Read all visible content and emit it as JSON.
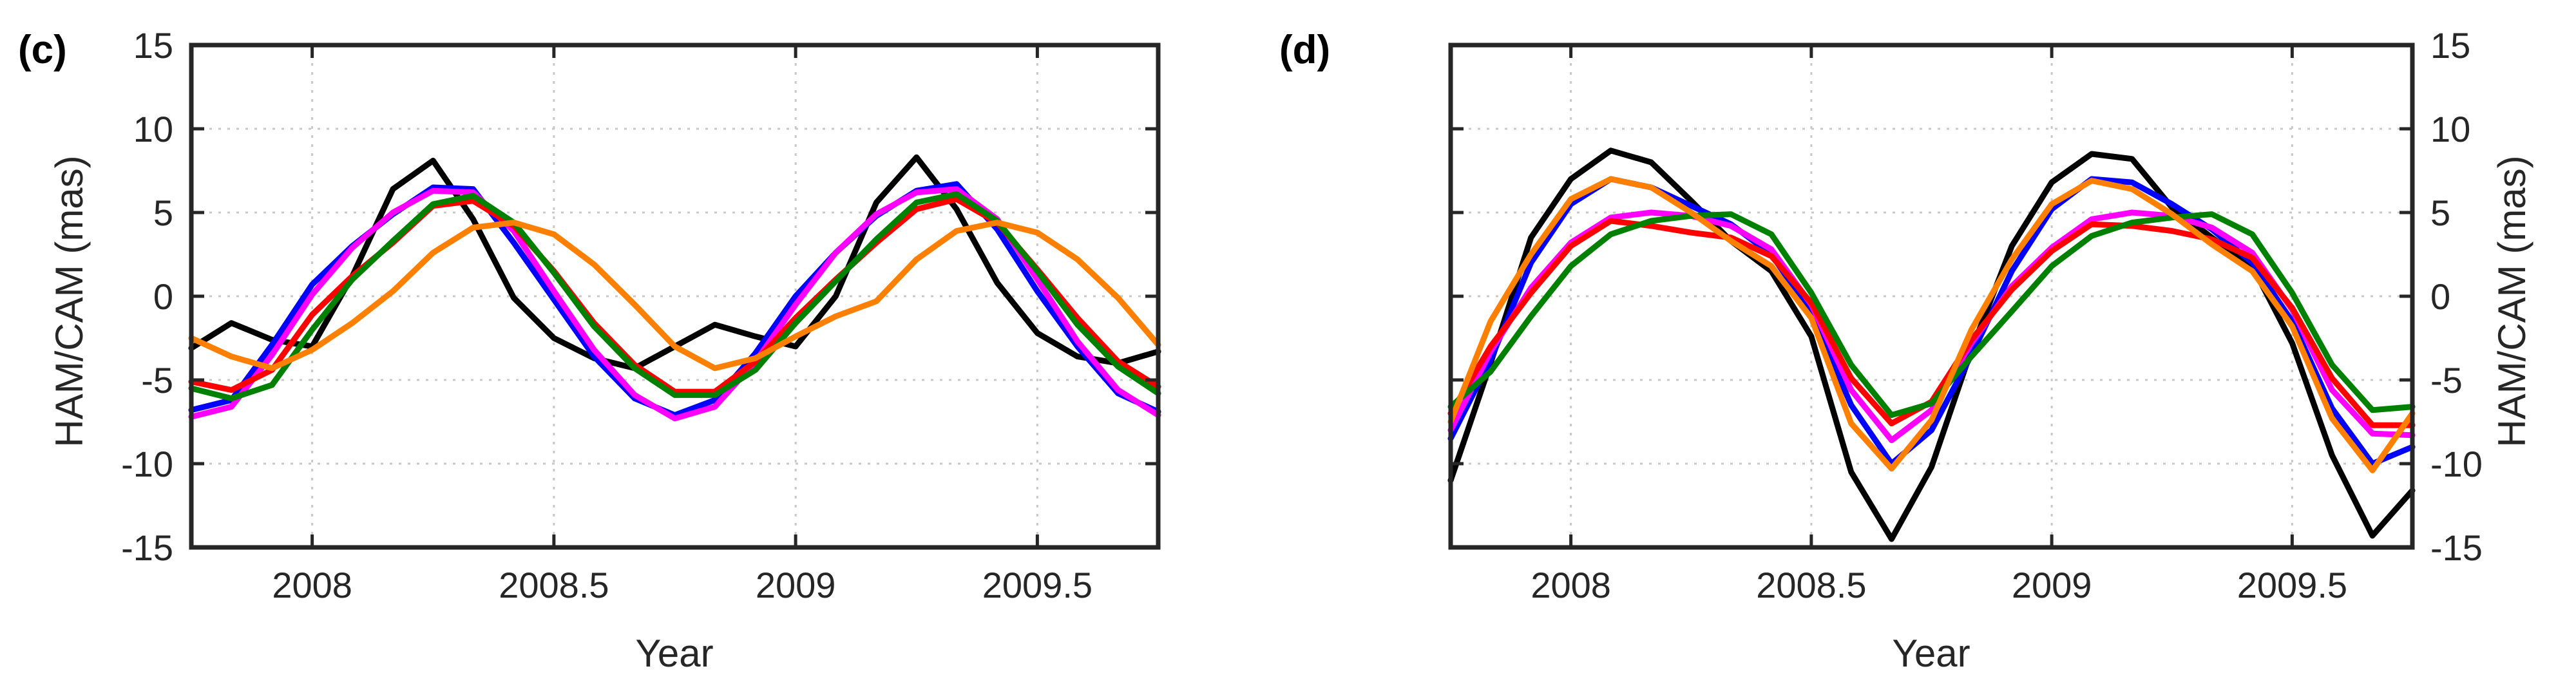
{
  "chart_data": [
    {
      "type": "line",
      "panel_label": "(c)",
      "xlabel": "Year",
      "ylabel": "HAM/CAM (mas)",
      "xlim": [
        2007.75,
        2009.75
      ],
      "ylim": [
        -15,
        15
      ],
      "x_ticks": [
        2008,
        2008.5,
        2009,
        2009.5
      ],
      "x_tick_labels": [
        "2008",
        "2008.5",
        "2009",
        "2009.5"
      ],
      "y_ticks": [
        -15,
        -10,
        -5,
        0,
        5,
        10,
        15
      ],
      "y_tick_labels": [
        "-15",
        "-10",
        "-5",
        "0",
        "5",
        "10",
        "15"
      ],
      "y_axis_side": "left",
      "grid": true,
      "x": [
        2007.75,
        2007.833,
        2007.917,
        2008.0,
        2008.083,
        2008.167,
        2008.25,
        2008.333,
        2008.417,
        2008.5,
        2008.583,
        2008.667,
        2008.75,
        2008.833,
        2008.917,
        2009.0,
        2009.083,
        2009.167,
        2009.25,
        2009.333,
        2009.417,
        2009.5,
        2009.583,
        2009.667,
        2009.75
      ],
      "series": [
        {
          "name": "black",
          "color": "#000000",
          "values": [
            -3.1,
            -1.6,
            -2.6,
            -3.0,
            1.2,
            6.4,
            8.1,
            4.6,
            -0.1,
            -2.5,
            -3.7,
            -4.3,
            -3.0,
            -1.7,
            -2.4,
            -3.0,
            0.0,
            5.6,
            8.3,
            5.2,
            0.8,
            -2.2,
            -3.6,
            -4.0,
            -3.3
          ]
        },
        {
          "name": "blue",
          "color": "#0000ff",
          "values": [
            -6.8,
            -6.2,
            -2.9,
            0.7,
            3.0,
            4.9,
            6.5,
            6.4,
            3.2,
            -0.2,
            -3.6,
            -6.1,
            -7.1,
            -6.2,
            -3.4,
            0.0,
            2.6,
            4.8,
            6.3,
            6.7,
            4.0,
            0.3,
            -3.0,
            -5.8,
            -6.9
          ]
        },
        {
          "name": "magenta",
          "color": "#ff00ff",
          "values": [
            -7.2,
            -6.6,
            -3.5,
            0.1,
            2.9,
            5.0,
            6.3,
            6.2,
            3.9,
            0.3,
            -3.2,
            -5.9,
            -7.3,
            -6.6,
            -3.9,
            -0.5,
            2.6,
            4.9,
            6.2,
            6.4,
            4.6,
            1.0,
            -2.7,
            -5.6,
            -7.1
          ]
        },
        {
          "name": "red",
          "color": "#ff0000",
          "values": [
            -5.1,
            -5.6,
            -4.4,
            -1.1,
            1.2,
            3.2,
            5.4,
            5.7,
            4.2,
            1.5,
            -1.6,
            -4.1,
            -5.7,
            -5.7,
            -3.9,
            -1.3,
            1.0,
            3.2,
            5.2,
            5.8,
            4.4,
            1.6,
            -1.3,
            -3.9,
            -5.4
          ]
        },
        {
          "name": "green",
          "color": "#008000",
          "values": [
            -5.5,
            -6.1,
            -5.3,
            -2.0,
            1.0,
            3.3,
            5.5,
            6.0,
            4.4,
            1.4,
            -1.8,
            -4.3,
            -5.9,
            -5.9,
            -4.4,
            -1.6,
            0.9,
            3.4,
            5.6,
            6.1,
            4.5,
            1.5,
            -1.7,
            -4.2,
            -5.8
          ]
        },
        {
          "name": "orange",
          "color": "#ff8000",
          "values": [
            -2.5,
            -3.6,
            -4.3,
            -3.2,
            -1.6,
            0.3,
            2.6,
            4.1,
            4.4,
            3.7,
            1.9,
            -0.5,
            -3.0,
            -4.3,
            -3.7,
            -2.4,
            -1.2,
            -0.3,
            2.2,
            3.9,
            4.4,
            3.8,
            2.2,
            -0.1,
            -2.9
          ]
        }
      ]
    },
    {
      "type": "line",
      "panel_label": "(d)",
      "xlabel": "Year",
      "ylabel": "HAM/CAM (mas)",
      "xlim": [
        2007.75,
        2009.75
      ],
      "ylim": [
        -15,
        15
      ],
      "x_ticks": [
        2008,
        2008.5,
        2009,
        2009.5
      ],
      "x_tick_labels": [
        "2008",
        "2008.5",
        "2009",
        "2009.5"
      ],
      "y_ticks": [
        -15,
        -10,
        -5,
        0,
        5,
        10,
        15
      ],
      "y_tick_labels": [
        "-15",
        "-10",
        "-5",
        "0",
        "5",
        "10",
        "15"
      ],
      "y_axis_side": "right",
      "grid": true,
      "x": [
        2007.75,
        2007.833,
        2007.917,
        2008.0,
        2008.083,
        2008.167,
        2008.25,
        2008.333,
        2008.417,
        2008.5,
        2008.583,
        2008.667,
        2008.75,
        2008.833,
        2008.917,
        2009.0,
        2009.083,
        2009.167,
        2009.25,
        2009.333,
        2009.417,
        2009.5,
        2009.583,
        2009.667,
        2009.75
      ],
      "series": [
        {
          "name": "black",
          "color": "#000000",
          "values": [
            -11.0,
            -4.0,
            3.5,
            7.0,
            8.7,
            8.0,
            5.7,
            3.3,
            1.5,
            -2.4,
            -10.5,
            -14.5,
            -10.2,
            -3.2,
            3.0,
            6.8,
            8.5,
            8.2,
            5.3,
            3.5,
            1.8,
            -2.8,
            -9.5,
            -14.3,
            -11.6
          ]
        },
        {
          "name": "blue",
          "color": "#0000ff",
          "values": [
            -8.5,
            -3.8,
            2.0,
            5.5,
            7.0,
            6.5,
            5.4,
            4.3,
            2.5,
            -1.0,
            -6.5,
            -10.0,
            -8.0,
            -3.5,
            1.5,
            5.2,
            7.0,
            6.8,
            5.5,
            4.0,
            2.0,
            -1.5,
            -6.7,
            -10.0,
            -9.0
          ]
        },
        {
          "name": "magenta",
          "color": "#ff00ff",
          "values": [
            -8.0,
            -3.3,
            0.5,
            3.2,
            4.7,
            5.0,
            4.8,
            4.2,
            2.8,
            -0.5,
            -5.6,
            -8.6,
            -6.8,
            -2.8,
            0.6,
            2.9,
            4.6,
            5.0,
            4.8,
            4.1,
            2.6,
            -0.8,
            -5.6,
            -8.2,
            -8.3
          ]
        },
        {
          "name": "red",
          "color": "#ff0000",
          "values": [
            -7.0,
            -3.0,
            0.2,
            3.0,
            4.5,
            4.2,
            3.8,
            3.5,
            2.4,
            -0.4,
            -4.9,
            -7.6,
            -6.3,
            -2.6,
            0.4,
            2.7,
            4.3,
            4.2,
            3.9,
            3.4,
            2.3,
            -0.7,
            -4.9,
            -7.7,
            -7.7
          ]
        },
        {
          "name": "green",
          "color": "#008000",
          "values": [
            -6.6,
            -4.5,
            -1.2,
            1.8,
            3.7,
            4.5,
            4.8,
            4.9,
            3.7,
            0.2,
            -4.1,
            -7.1,
            -6.4,
            -3.6,
            -0.9,
            1.8,
            3.6,
            4.4,
            4.7,
            4.9,
            3.7,
            0.2,
            -4.1,
            -6.8,
            -6.6
          ]
        },
        {
          "name": "orange",
          "color": "#ff8000",
          "values": [
            -7.5,
            -1.5,
            2.5,
            5.8,
            7.0,
            6.5,
            5.0,
            3.3,
            1.8,
            -1.3,
            -7.6,
            -10.3,
            -7.4,
            -2.0,
            2.2,
            5.5,
            6.9,
            6.4,
            4.9,
            3.1,
            1.5,
            -1.8,
            -7.3,
            -10.4,
            -7.0
          ]
        }
      ]
    }
  ]
}
